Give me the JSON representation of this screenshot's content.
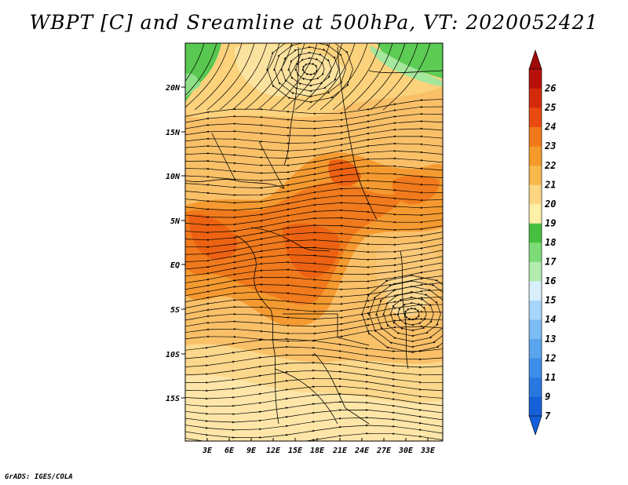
{
  "title": "WBPT [C] and Sreamline at 500hPa, VT: 2020052421",
  "credit": "GrADS: IGES/COLA",
  "map": {
    "lon_labels": [
      "3E",
      "6E",
      "9E",
      "12E",
      "15E",
      "18E",
      "21E",
      "24E",
      "27E",
      "30E",
      "33E"
    ],
    "lat_labels": [
      "20N",
      "15N",
      "10N",
      "5N",
      "EQ",
      "5S",
      "10S",
      "15S"
    ]
  },
  "colorbar": {
    "labels": [
      "7",
      "9",
      "11",
      "12",
      "13",
      "14",
      "15",
      "16",
      "17",
      "18",
      "19",
      "20",
      "21",
      "22",
      "23",
      "24",
      "25",
      "26"
    ],
    "colors": [
      "#1560d8",
      "#2878e0",
      "#3c8ee8",
      "#5aa4ee",
      "#7cbcf4",
      "#a8d6fa",
      "#d8f0fc",
      "#b4ecb0",
      "#7edc78",
      "#46c040",
      "#fff0a8",
      "#fcd682",
      "#f8b84c",
      "#f49a2a",
      "#f07818",
      "#e84a10",
      "#d42a0c",
      "#b8100a"
    ],
    "low_arrow_color": "#1460dc",
    "high_arrow_color": "#a00a0a"
  }
}
